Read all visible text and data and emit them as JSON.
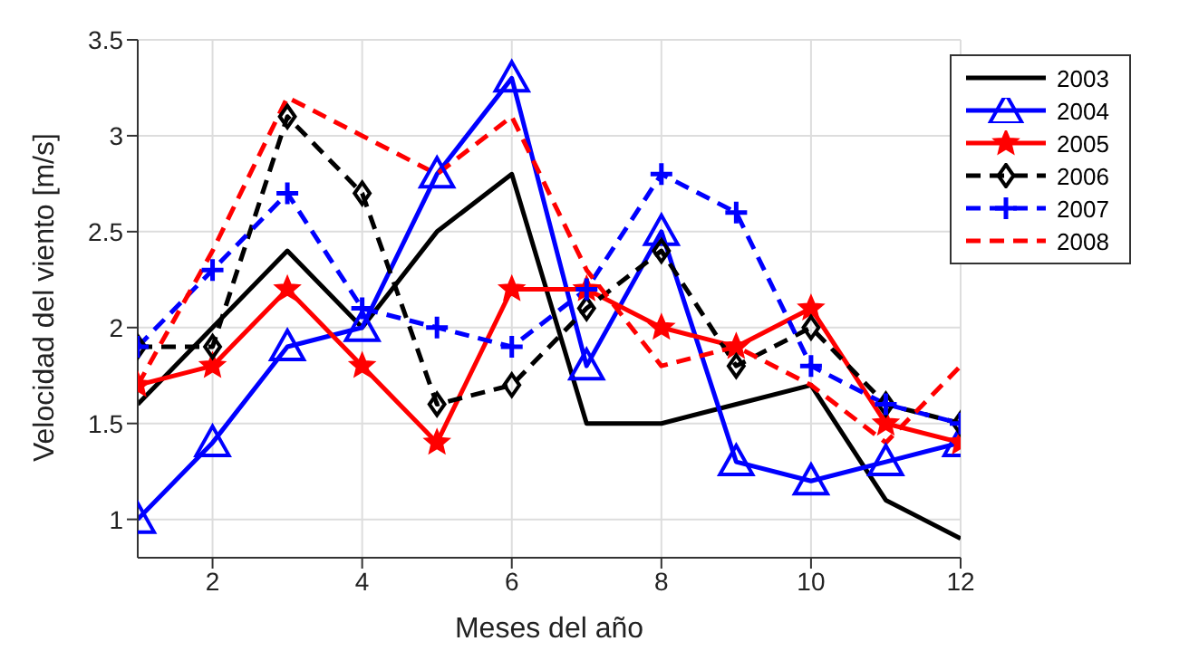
{
  "chart_data": {
    "type": "line",
    "xlabel": "Meses del año",
    "ylabel": "Velocidad del viento [m/s]",
    "x": [
      1,
      2,
      3,
      4,
      5,
      6,
      7,
      8,
      9,
      10,
      11,
      12
    ],
    "xlim": [
      1,
      12
    ],
    "xticks": [
      2,
      4,
      6,
      8,
      10,
      12
    ],
    "ylim": [
      0.8,
      3.5
    ],
    "yticks": [
      1,
      1.5,
      2,
      2.5,
      3,
      3.5
    ],
    "grid": true,
    "legend": "top right",
    "series": [
      {
        "name": "2003",
        "color": "#000000",
        "marker": "none",
        "line_style": "solid",
        "values": [
          1.6,
          2.0,
          2.4,
          2.0,
          2.5,
          2.8,
          1.5,
          1.5,
          1.6,
          1.7,
          1.1,
          0.9
        ]
      },
      {
        "name": "2004",
        "color": "#0000ff",
        "marker": "triangle",
        "line_style": "solid",
        "values": [
          1.0,
          1.4,
          1.9,
          2.0,
          2.8,
          3.3,
          1.8,
          2.5,
          1.3,
          1.2,
          1.3,
          1.4
        ]
      },
      {
        "name": "2005",
        "color": "#ff0000",
        "marker": "star",
        "line_style": "solid",
        "values": [
          1.7,
          1.8,
          2.2,
          1.8,
          1.4,
          2.2,
          2.2,
          2.0,
          1.9,
          2.1,
          1.5,
          1.4
        ]
      },
      {
        "name": "2006",
        "color": "#000000",
        "marker": "diamond",
        "line_style": "dashed",
        "values": [
          1.9,
          1.9,
          3.1,
          2.7,
          1.6,
          1.7,
          2.1,
          2.4,
          1.8,
          2.0,
          1.6,
          1.5
        ]
      },
      {
        "name": "2007",
        "color": "#0000ff",
        "marker": "cross",
        "line_style": "dashed",
        "values": [
          1.9,
          2.3,
          2.7,
          2.1,
          2.0,
          1.9,
          2.2,
          2.8,
          2.6,
          1.8,
          1.6,
          1.5
        ]
      },
      {
        "name": "2008",
        "color": "#ff0000",
        "marker": "none",
        "line_style": "dashed",
        "values": [
          1.7,
          2.4,
          3.2,
          3.0,
          2.8,
          3.1,
          2.3,
          1.8,
          1.9,
          1.7,
          1.4,
          1.8
        ]
      }
    ]
  }
}
